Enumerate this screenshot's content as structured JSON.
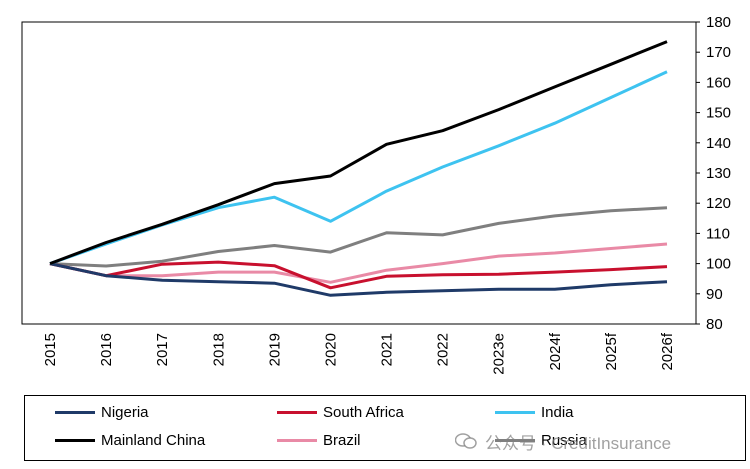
{
  "chart_data": {
    "type": "line",
    "title": "",
    "xlabel": "",
    "ylabel": "",
    "categories": [
      "2015",
      "2016",
      "2017",
      "2018",
      "2019",
      "2020",
      "2021",
      "2022",
      "2023e",
      "2024f",
      "2025f",
      "2026f"
    ],
    "ylim": [
      80,
      180
    ],
    "yticks": [
      80,
      90,
      100,
      110,
      120,
      130,
      140,
      150,
      160,
      170,
      180
    ],
    "y_axis_side": "right",
    "grid": false,
    "legend_position": "bottom",
    "series": [
      {
        "name": "Nigeria",
        "color": "#1f3a68",
        "values": [
          100,
          96,
          94.5,
          94,
          93.5,
          89.5,
          90.5,
          91,
          91.5,
          91.5,
          93,
          94
        ]
      },
      {
        "name": "South Africa",
        "color": "#c8102e",
        "values": [
          100,
          96,
          99.8,
          100.5,
          99.3,
          92,
          95.8,
          96.3,
          96.5,
          97.2,
          98,
          99
        ]
      },
      {
        "name": "India",
        "color": "#3ec3f0",
        "values": [
          100,
          106.5,
          112.8,
          118.5,
          122,
          114,
          124,
          132,
          139,
          146.5,
          155,
          163.5
        ]
      },
      {
        "name": "Mainland  China",
        "color": "#000000",
        "values": [
          100,
          107,
          113,
          119.5,
          126.5,
          129,
          139.5,
          144,
          151,
          158.5,
          166,
          173.5
        ]
      },
      {
        "name": "Brazil",
        "color": "#e98aa6",
        "values": [
          100,
          96,
          96,
          97.2,
          97.2,
          93.8,
          97.8,
          100,
          102.5,
          103.5,
          105,
          106.5
        ]
      },
      {
        "name": "Russia",
        "color": "#7f7f7f",
        "values": [
          100,
          99.2,
          100.8,
          104,
          106,
          103.8,
          110.2,
          109.5,
          113.3,
          115.8,
          117.5,
          118.5
        ]
      }
    ]
  },
  "watermark": {
    "text": "公众号 · CreditInsurance",
    "icon": "wechat-icon"
  }
}
